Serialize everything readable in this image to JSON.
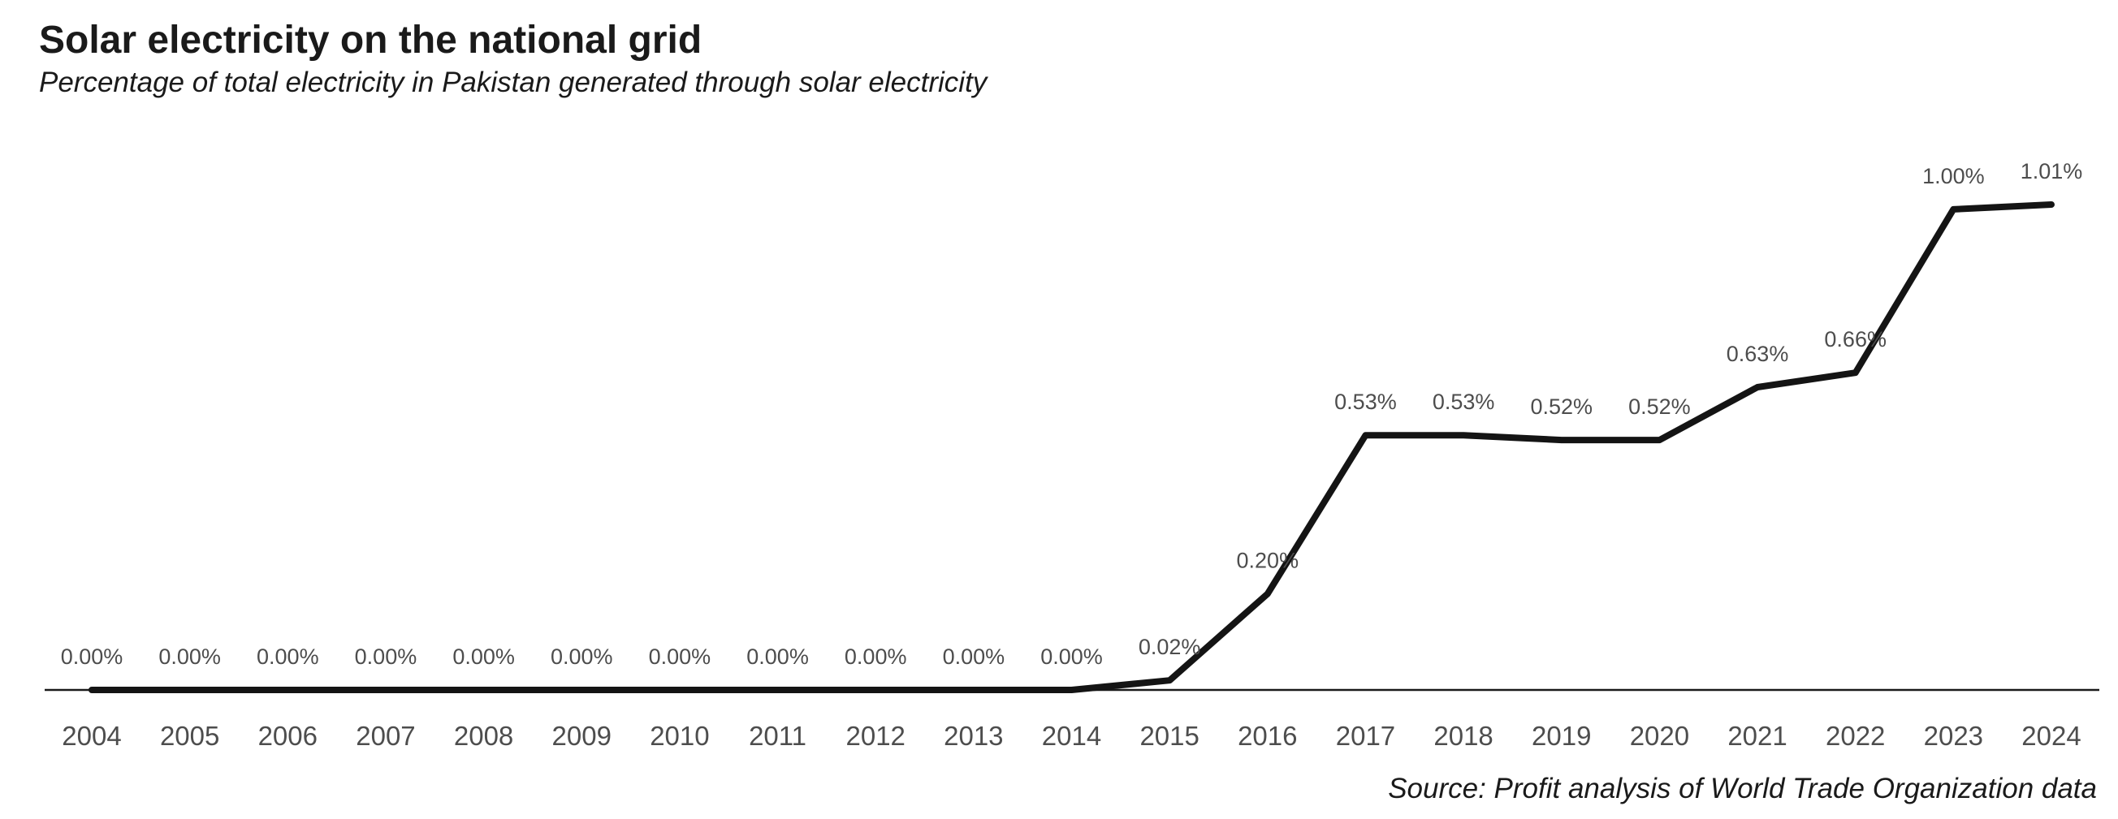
{
  "chart_data": {
    "type": "line",
    "title": "Solar electricity on the national grid",
    "subtitle": "Percentage of total electricity in Pakistan generated through solar electricity",
    "caption": "Source: Profit analysis of World Trade Organization data",
    "x": [
      "2004",
      "2005",
      "2006",
      "2007",
      "2008",
      "2009",
      "2010",
      "2011",
      "2012",
      "2013",
      "2014",
      "2015",
      "2016",
      "2017",
      "2018",
      "2019",
      "2020",
      "2021",
      "2022",
      "2023",
      "2024"
    ],
    "values": [
      0,
      0,
      0,
      0,
      0,
      0,
      0,
      0,
      0,
      0,
      0,
      0.02,
      0.2,
      0.53,
      0.53,
      0.52,
      0.52,
      0.63,
      0.66,
      1.0,
      1.01
    ],
    "data_labels": [
      "0.00%",
      "0.00%",
      "0.00%",
      "0.00%",
      "0.00%",
      "0.00%",
      "0.00%",
      "0.00%",
      "0.00%",
      "0.00%",
      "0.00%",
      "0.02%",
      "0.20%",
      "0.53%",
      "0.53%",
      "0.52%",
      "0.52%",
      "0.63%",
      "0.66%",
      "1.00%",
      "1.01%"
    ],
    "xlabel": "",
    "ylabel": "",
    "ylim": [
      0,
      1.01
    ],
    "grid": false,
    "legend": "none",
    "line_color": "#141414"
  }
}
